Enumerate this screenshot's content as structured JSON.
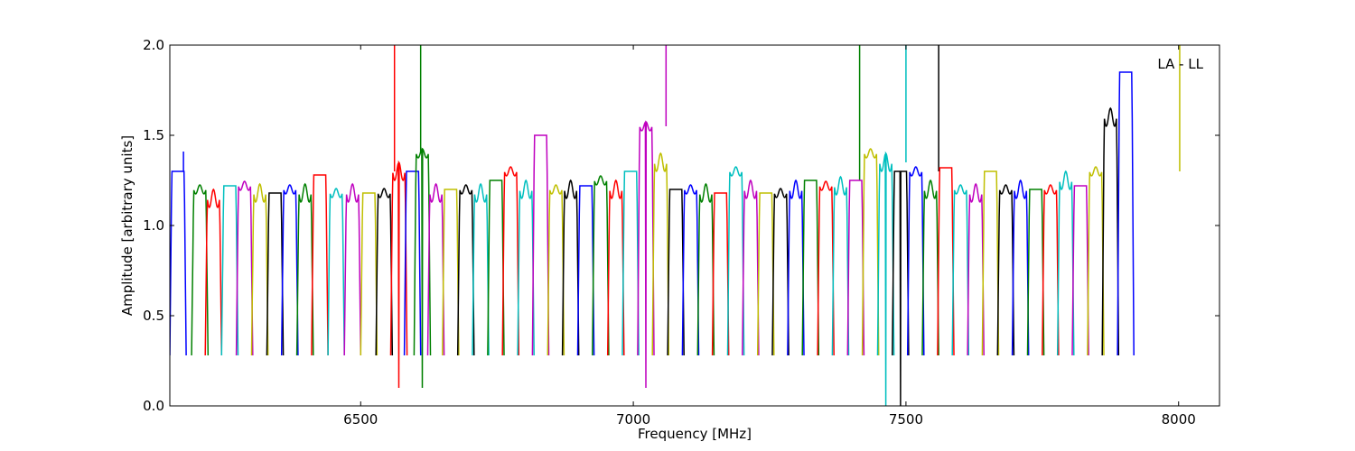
{
  "chart_data": {
    "type": "line",
    "title": "",
    "xlabel": "Frequency [MHz]",
    "ylabel": "Amplitude [arbitrary units]",
    "xlim": [
      6150,
      8075
    ],
    "ylim": [
      0.0,
      2.0
    ],
    "xticks": [
      6500,
      7000,
      7500,
      8000
    ],
    "xtick_labels": [
      "6500",
      "7000",
      "7500",
      "8000"
    ],
    "yticks": [
      0.0,
      0.5,
      1.0,
      1.5,
      2.0
    ],
    "ytick_labels": [
      "0.0",
      "0.5",
      "1.0",
      "1.5",
      "2.0"
    ],
    "grid": false,
    "annotation": "LA - LL",
    "annotation_position": "top-right",
    "description": "Bandpass amplitude per spectral window; each window is a bandpass-shaped curve, colours cycle blue, green, red, cyan, magenta, yellow, black; grey traces show the unflagged data behind RFI spikes.",
    "color_cycle": [
      "#0000ff",
      "#008000",
      "#ff0000",
      "#00bfbf",
      "#bf00bf",
      "#bfbf00",
      "#000000"
    ],
    "window_width_mhz": 30,
    "series": [
      {
        "start": 6150,
        "level": 1.3,
        "spike": {
          "x": 6175,
          "y": 1.41
        },
        "color": "#0000ff"
      },
      {
        "start": 6190,
        "level": 1.2,
        "color": "#008000"
      },
      {
        "start": 6215,
        "level": 1.15,
        "color": "#ff0000"
      },
      {
        "start": 6245,
        "level": 1.22,
        "color": "#00bfbf"
      },
      {
        "start": 6272,
        "level": 1.22,
        "color": "#bf00bf"
      },
      {
        "start": 6300,
        "level": 1.18,
        "color": "#bfbf00"
      },
      {
        "start": 6328,
        "level": 1.18,
        "color": "#000000"
      },
      {
        "start": 6355,
        "level": 1.2,
        "color": "#0000ff"
      },
      {
        "start": 6383,
        "level": 1.18,
        "color": "#008000"
      },
      {
        "start": 6410,
        "level": 1.28,
        "color": "#ff0000"
      },
      {
        "start": 6440,
        "level": 1.18,
        "color": "#00bfbf"
      },
      {
        "start": 6470,
        "level": 1.18,
        "color": "#bf00bf"
      },
      {
        "start": 6500,
        "level": 1.18,
        "color": "#bfbf00"
      },
      {
        "start": 6528,
        "level": 1.18,
        "color": "#000000"
      },
      {
        "start": 6555,
        "level": 1.3,
        "spike": {
          "x": 6562,
          "y": 2.0
        },
        "dip": 0.1,
        "color": "#ff0000"
      },
      {
        "start": 6580,
        "level": 1.3,
        "color": "#0000ff"
      },
      {
        "start": 6598,
        "level": 1.4,
        "spike": {
          "x": 6610,
          "y": 2.0
        },
        "dip": 0.1,
        "color": "#008000"
      },
      {
        "start": 6623,
        "level": 1.18,
        "color": "#bf00bf"
      },
      {
        "start": 6650,
        "level": 1.2,
        "color": "#bfbf00"
      },
      {
        "start": 6678,
        "level": 1.2,
        "color": "#000000"
      },
      {
        "start": 6705,
        "level": 1.18,
        "color": "#00bfbf"
      },
      {
        "start": 6733,
        "level": 1.25,
        "color": "#008000"
      },
      {
        "start": 6760,
        "level": 1.3,
        "color": "#ff0000"
      },
      {
        "start": 6788,
        "level": 1.2,
        "color": "#00bfbf"
      },
      {
        "start": 6815,
        "level": 1.5,
        "color": "#bf00bf"
      },
      {
        "start": 6843,
        "level": 1.2,
        "color": "#bfbf00"
      },
      {
        "start": 6870,
        "level": 1.2,
        "color": "#000000"
      },
      {
        "start": 6898,
        "level": 1.22,
        "color": "#0000ff"
      },
      {
        "start": 6925,
        "level": 1.25,
        "color": "#008000"
      },
      {
        "start": 6953,
        "level": 1.2,
        "color": "#ff0000"
      },
      {
        "start": 6980,
        "level": 1.3,
        "color": "#00bfbf"
      },
      {
        "start": 7008,
        "level": 1.55,
        "spike": {
          "x": 7060,
          "y": 2.0
        },
        "dip": 0.1,
        "color": "#bf00bf"
      },
      {
        "start": 7035,
        "level": 1.35,
        "color": "#bfbf00"
      },
      {
        "start": 7063,
        "level": 1.2,
        "color": "#000000"
      },
      {
        "start": 7090,
        "level": 1.2,
        "color": "#0000ff"
      },
      {
        "start": 7118,
        "level": 1.18,
        "color": "#008000"
      },
      {
        "start": 7145,
        "level": 1.18,
        "color": "#ff0000"
      },
      {
        "start": 7173,
        "level": 1.3,
        "color": "#00bfbf"
      },
      {
        "start": 7200,
        "level": 1.2,
        "color": "#bf00bf"
      },
      {
        "start": 7228,
        "level": 1.18,
        "color": "#bfbf00"
      },
      {
        "start": 7255,
        "level": 1.18,
        "color": "#000000"
      },
      {
        "start": 7283,
        "level": 1.2,
        "color": "#0000ff"
      },
      {
        "start": 7310,
        "level": 1.25,
        "spike": {
          "x": 7415,
          "y": 2.0
        },
        "color": "#008000"
      },
      {
        "start": 7338,
        "level": 1.22,
        "color": "#ff0000"
      },
      {
        "start": 7365,
        "level": 1.22,
        "color": "#00bfbf"
      },
      {
        "start": 7393,
        "level": 1.25,
        "color": "#bf00bf"
      },
      {
        "start": 7420,
        "level": 1.4,
        "color": "#bfbf00"
      },
      {
        "start": 7448,
        "level": 1.35,
        "spike": {
          "x": 7500,
          "y": 2.0
        },
        "dip": 0.0,
        "color": "#00bfbf"
      },
      {
        "start": 7475,
        "level": 1.3,
        "spike": {
          "x": 7560,
          "y": 2.0
        },
        "dip": 0.0,
        "color": "#000000"
      },
      {
        "start": 7503,
        "level": 1.3,
        "color": "#0000ff"
      },
      {
        "start": 7530,
        "level": 1.2,
        "color": "#008000"
      },
      {
        "start": 7558,
        "level": 1.32,
        "color": "#ff0000"
      },
      {
        "start": 7585,
        "level": 1.2,
        "color": "#00bfbf"
      },
      {
        "start": 7613,
        "level": 1.18,
        "color": "#bf00bf"
      },
      {
        "start": 7640,
        "level": 1.3,
        "color": "#bfbf00"
      },
      {
        "start": 7668,
        "level": 1.2,
        "color": "#000000"
      },
      {
        "start": 7695,
        "level": 1.2,
        "color": "#0000ff"
      },
      {
        "start": 7723,
        "level": 1.2,
        "color": "#008000"
      },
      {
        "start": 7750,
        "level": 1.2,
        "color": "#ff0000"
      },
      {
        "start": 7778,
        "level": 1.25,
        "color": "#00bfbf"
      },
      {
        "start": 7805,
        "level": 1.22,
        "color": "#bf00bf"
      },
      {
        "start": 7833,
        "level": 1.3,
        "spike": {
          "x": 8002,
          "y": 2.0
        },
        "color": "#bfbf00"
      },
      {
        "start": 7860,
        "level": 1.6,
        "color": "#000000"
      },
      {
        "start": 7888,
        "level": 1.85,
        "color": "#0000ff"
      }
    ]
  }
}
